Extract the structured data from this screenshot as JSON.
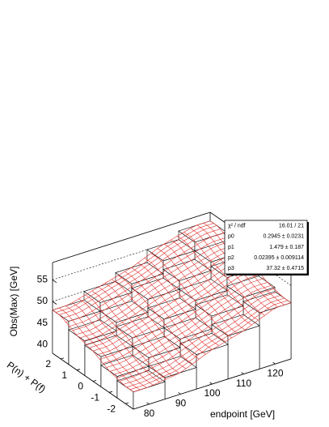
{
  "chart_data": {
    "type": "lego",
    "x_label": "endpoint [GeV]",
    "y_label": "P(n) + P(f)",
    "z_label": "Obs(Max) [GeV]",
    "x": [
      80,
      90,
      100,
      110,
      120
    ],
    "y": [
      -2,
      -1,
      0,
      1,
      2
    ],
    "z": [
      [
        42,
        43,
        46,
        48,
        51
      ],
      [
        43,
        45,
        47,
        50,
        52
      ],
      [
        45,
        47,
        49,
        51,
        54
      ],
      [
        46,
        48,
        51,
        53,
        55
      ],
      [
        48,
        50,
        52,
        55,
        57
      ]
    ],
    "xlim": [
      75,
      125
    ],
    "ylim": [
      -2.5,
      2.5
    ],
    "zlim": [
      38,
      59
    ],
    "xticks": [
      80,
      90,
      100,
      110,
      120
    ],
    "yticks": [
      -2,
      -1,
      0,
      1,
      2
    ],
    "zticks": [
      40,
      45,
      50,
      55
    ],
    "grid": true,
    "bar_color": "#ffffff",
    "surface_color": "#e0302c",
    "stats": [
      {
        "label": "χ² / ndf",
        "value": "16.01 / 21"
      },
      {
        "label": "p0",
        "value": "0.2945 ± 0.0231"
      },
      {
        "label": "p1",
        "value": "1.479 ± 0.187"
      },
      {
        "label": "p2",
        "value": "0.02395 ± 0.009114"
      },
      {
        "label": "p3",
        "value": "37.32 ± 0.4715"
      }
    ]
  }
}
